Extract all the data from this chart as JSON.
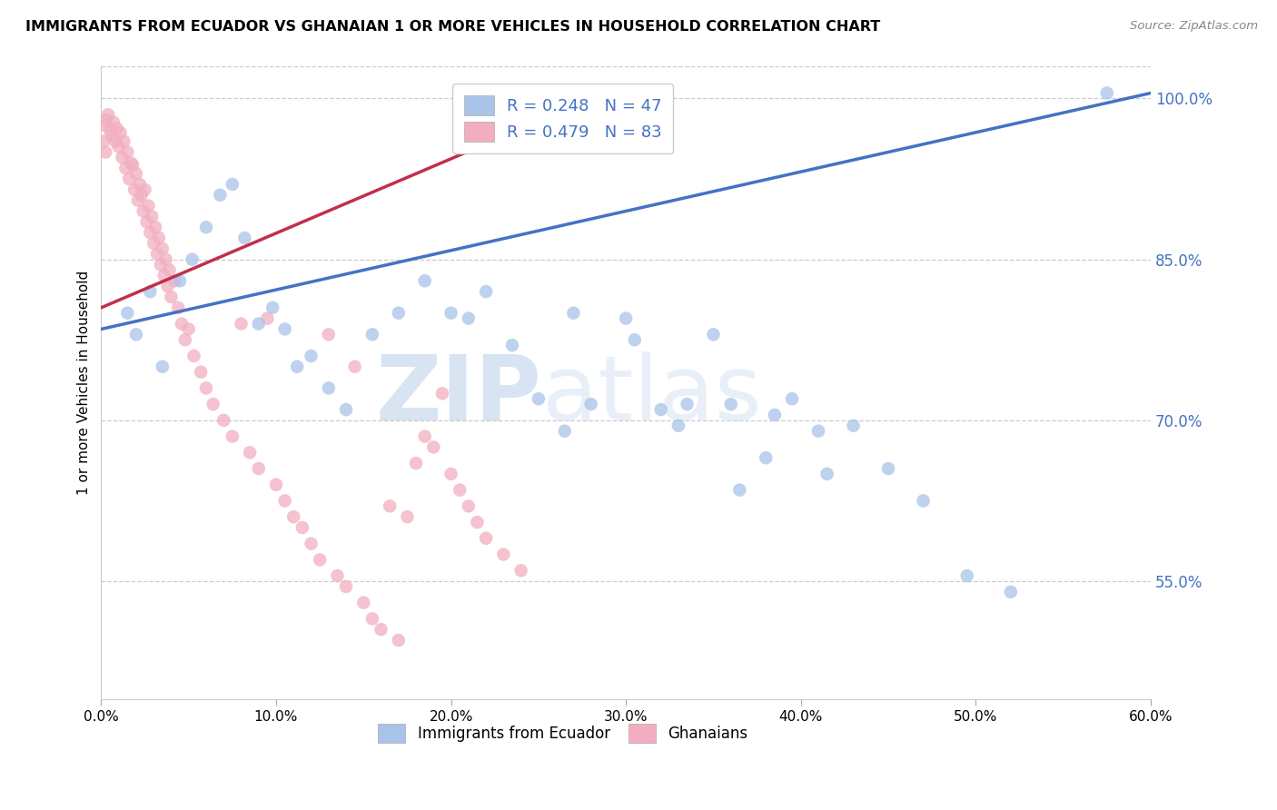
{
  "title": "IMMIGRANTS FROM ECUADOR VS GHANAIAN 1 OR MORE VEHICLES IN HOUSEHOLD CORRELATION CHART",
  "source": "Source: ZipAtlas.com",
  "ylabel": "1 or more Vehicles in Household",
  "xlim": [
    0.0,
    60.0
  ],
  "ylim": [
    44.0,
    103.0
  ],
  "yticks": [
    55.0,
    70.0,
    85.0,
    100.0
  ],
  "xticks": [
    0.0,
    10.0,
    20.0,
    30.0,
    40.0,
    50.0,
    60.0
  ],
  "legend_blue_r": "R = 0.248",
  "legend_blue_n": "N = 47",
  "legend_pink_r": "R = 0.479",
  "legend_pink_n": "N = 83",
  "blue_color": "#a8c4e8",
  "pink_color": "#f2aec0",
  "blue_line_color": "#4472c4",
  "pink_line_color": "#c0304a",
  "right_axis_color": "#4472c4",
  "watermark_zip": "ZIP",
  "watermark_atlas": "atlas",
  "ecuador_x": [
    1.5,
    2.0,
    2.8,
    3.5,
    4.5,
    5.2,
    6.0,
    6.8,
    7.5,
    8.2,
    9.0,
    9.8,
    10.5,
    11.2,
    12.0,
    13.0,
    14.0,
    15.5,
    17.0,
    18.5,
    20.0,
    21.0,
    22.0,
    23.5,
    25.0,
    26.5,
    28.0,
    30.0,
    32.0,
    33.5,
    35.0,
    36.5,
    38.0,
    39.5,
    41.0,
    43.0,
    45.0,
    47.0,
    49.5,
    52.0,
    27.0,
    30.5,
    33.0,
    36.0,
    38.5,
    41.5,
    57.5
  ],
  "ecuador_y": [
    80.0,
    78.0,
    82.0,
    75.0,
    83.0,
    85.0,
    88.0,
    91.0,
    92.0,
    87.0,
    79.0,
    80.5,
    78.5,
    75.0,
    76.0,
    73.0,
    71.0,
    78.0,
    80.0,
    83.0,
    80.0,
    79.5,
    82.0,
    77.0,
    72.0,
    69.0,
    71.5,
    79.5,
    71.0,
    71.5,
    78.0,
    63.5,
    66.5,
    72.0,
    69.0,
    69.5,
    65.5,
    62.5,
    55.5,
    54.0,
    80.0,
    77.5,
    69.5,
    71.5,
    70.5,
    65.0,
    100.5
  ],
  "ghanaian_x": [
    0.2,
    0.3,
    0.4,
    0.5,
    0.6,
    0.7,
    0.8,
    0.9,
    1.0,
    1.1,
    1.2,
    1.3,
    1.4,
    1.5,
    1.6,
    1.7,
    1.8,
    1.9,
    2.0,
    2.1,
    2.2,
    2.3,
    2.4,
    2.5,
    2.6,
    2.7,
    2.8,
    2.9,
    3.0,
    3.1,
    3.2,
    3.3,
    3.4,
    3.5,
    3.6,
    3.7,
    3.8,
    3.9,
    4.0,
    4.2,
    4.4,
    4.6,
    4.8,
    5.0,
    5.3,
    5.7,
    6.0,
    6.4,
    7.0,
    7.5,
    8.0,
    8.5,
    9.0,
    9.5,
    10.0,
    10.5,
    11.0,
    11.5,
    12.0,
    12.5,
    13.0,
    13.5,
    14.0,
    14.5,
    15.0,
    15.5,
    16.0,
    16.5,
    17.0,
    17.5,
    18.0,
    18.5,
    19.0,
    19.5,
    20.0,
    20.5,
    21.0,
    21.5,
    22.0,
    23.0,
    24.0,
    0.15,
    0.25
  ],
  "ghanaian_y": [
    97.5,
    98.0,
    98.5,
    97.0,
    96.5,
    97.8,
    96.0,
    97.2,
    95.5,
    96.8,
    94.5,
    96.0,
    93.5,
    95.0,
    92.5,
    94.0,
    93.8,
    91.5,
    93.0,
    90.5,
    92.0,
    91.0,
    89.5,
    91.5,
    88.5,
    90.0,
    87.5,
    89.0,
    86.5,
    88.0,
    85.5,
    87.0,
    84.5,
    86.0,
    83.5,
    85.0,
    82.5,
    84.0,
    81.5,
    83.0,
    80.5,
    79.0,
    77.5,
    78.5,
    76.0,
    74.5,
    73.0,
    71.5,
    70.0,
    68.5,
    79.0,
    67.0,
    65.5,
    79.5,
    64.0,
    62.5,
    61.0,
    60.0,
    58.5,
    57.0,
    78.0,
    55.5,
    54.5,
    75.0,
    53.0,
    51.5,
    50.5,
    62.0,
    49.5,
    61.0,
    66.0,
    68.5,
    67.5,
    72.5,
    65.0,
    63.5,
    62.0,
    60.5,
    59.0,
    57.5,
    56.0,
    96.0,
    95.0
  ],
  "blue_line_x": [
    0.0,
    60.0
  ],
  "blue_line_y": [
    78.5,
    100.5
  ],
  "pink_line_x": [
    0.0,
    24.5
  ],
  "pink_line_y": [
    80.5,
    97.5
  ]
}
